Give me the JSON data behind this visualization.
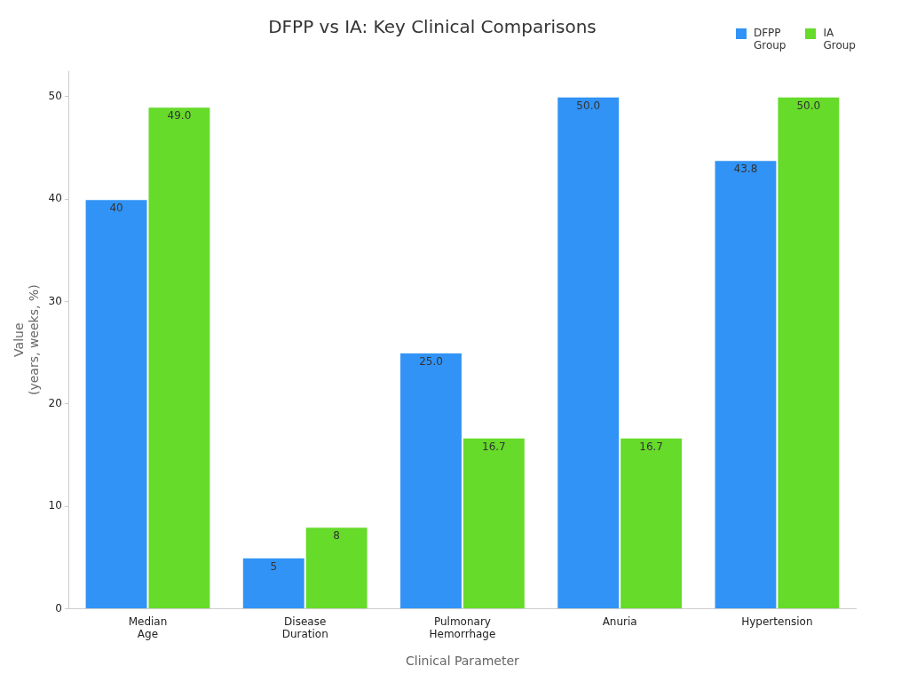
{
  "chart_data": {
    "type": "bar",
    "title": "DFPP vs IA: Key Clinical Comparisons",
    "xlabel": "Clinical Parameter",
    "ylabel": "Value\n(years, weeks, %)",
    "categories": [
      "Median Age",
      "Disease Duration",
      "Pulmonary Hemorrhage",
      "Anuria",
      "Hypertension"
    ],
    "series": [
      {
        "name": "DFPP Group",
        "color": "#3193f5",
        "values": [
          40,
          5,
          25,
          50,
          43.8
        ],
        "value_labels": [
          "40",
          "5",
          "25.0",
          "50.0",
          "43.8"
        ]
      },
      {
        "name": "IA Group",
        "color": "#66db2a",
        "values": [
          49,
          8,
          16.7,
          16.7,
          50
        ],
        "value_labels": [
          "49.0",
          "8",
          "16.7",
          "16.7",
          "50.0"
        ]
      }
    ],
    "ylim": [
      0,
      52.5
    ],
    "yticks": [
      0,
      10,
      20,
      30,
      40,
      50
    ],
    "grid": false,
    "legend": "top right"
  }
}
